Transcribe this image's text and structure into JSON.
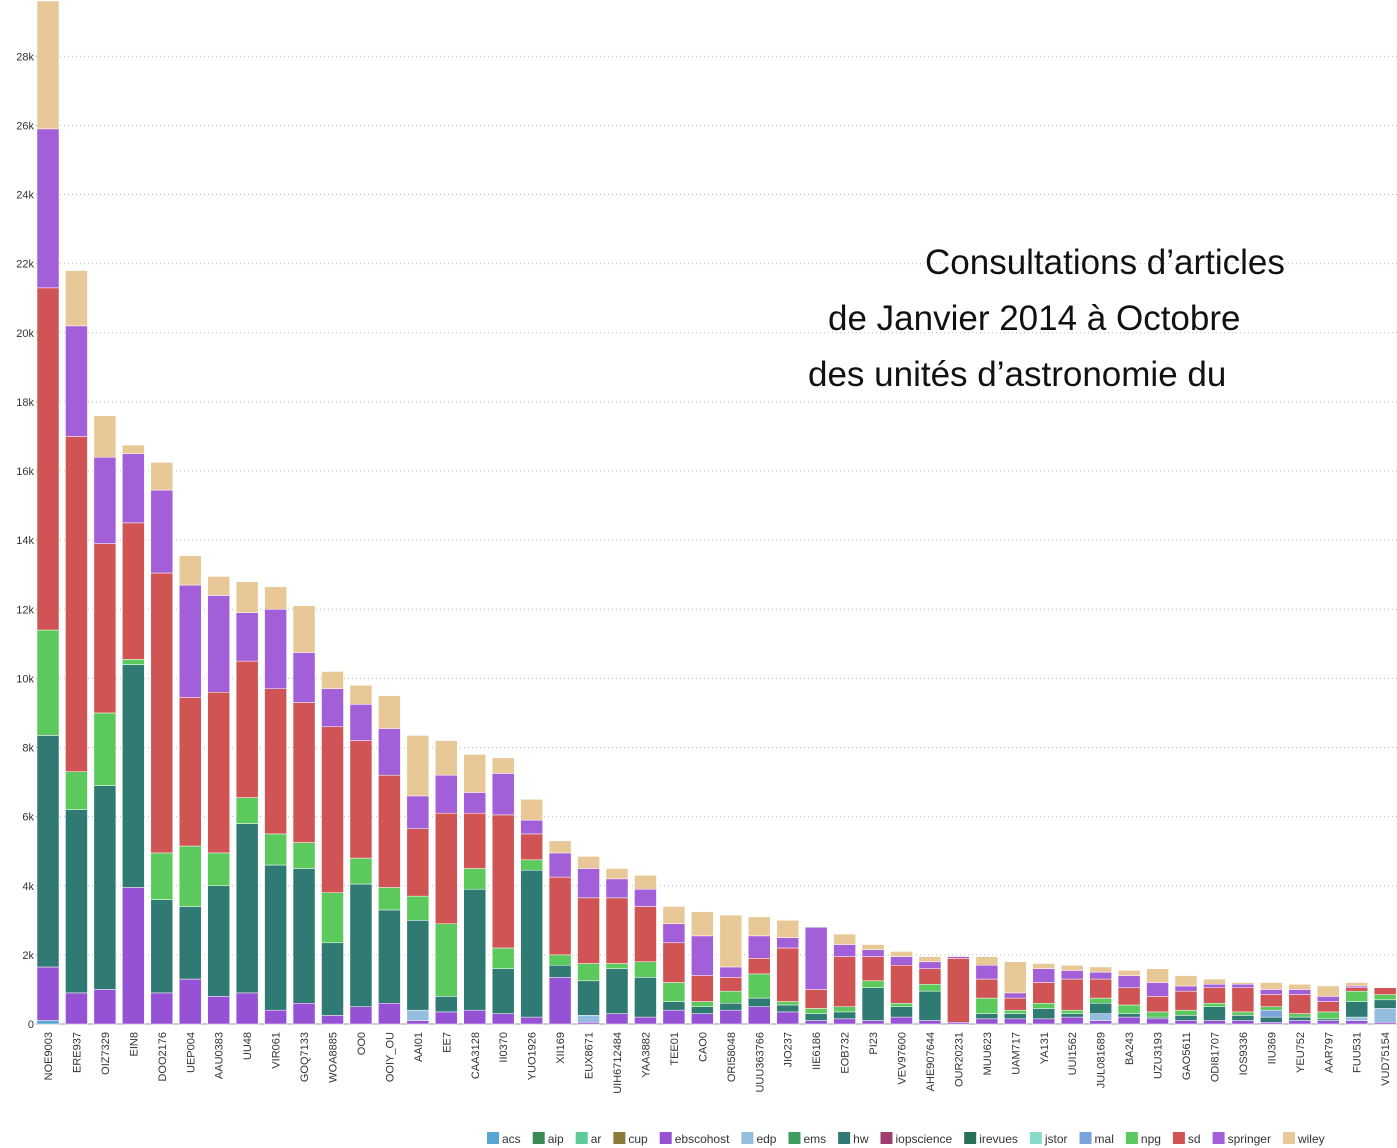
{
  "chart_data": {
    "type": "stacked_bar",
    "title": [
      "Consultations d’articles",
      "de Janvier 2014 à Octobre",
      "des unités d’astronomie du"
    ],
    "categories": [
      "NOE9003",
      "ERE937",
      "OIZ7329",
      "EIN8",
      "DOO2176",
      "UEP004",
      "AAU0383",
      "UU48",
      "VIR061",
      "GOQ7133",
      "WOA8885",
      "OO0",
      "OOIY_OU",
      "AAI01",
      "EE7",
      "CAA3128",
      "II0370",
      "YUO1926",
      "XII169",
      "EUX8671",
      "UIH6712484",
      "YAA3882",
      "TEE01",
      "CAO0",
      "ORI58048",
      "UUU363766",
      "JIO237",
      "IIE6186",
      "EOB732",
      "PI23",
      "VEV97600",
      "AHE907644",
      "OUR20231",
      "MUU623",
      "UAM717",
      "YA131",
      "UUI1562",
      "JUL081689",
      "BA243",
      "UZU3193",
      "GAO5611",
      "ODI81707",
      "IOS9336",
      "IIU369",
      "YEU752",
      "AAR797",
      "FUU531",
      "VUD75154"
    ],
    "series": [
      {
        "name": "acs",
        "color": "#5aa6d2",
        "values": [
          100,
          0,
          0,
          0,
          0,
          0,
          0,
          0,
          0,
          0,
          0,
          0,
          0,
          0,
          0,
          0,
          0,
          0,
          0,
          0,
          0,
          0,
          0,
          0,
          0,
          0,
          0,
          0,
          0,
          0,
          0,
          0,
          0,
          0,
          0,
          0,
          0,
          0,
          0,
          0,
          0,
          0,
          0,
          0,
          0,
          0,
          0,
          0
        ]
      },
      {
        "name": "aip",
        "color": "#3a8a55",
        "values": [
          0,
          0,
          0,
          0,
          0,
          0,
          0,
          0,
          0,
          0,
          0,
          0,
          0,
          0,
          0,
          0,
          0,
          0,
          0,
          0,
          0,
          0,
          0,
          0,
          0,
          0,
          0,
          0,
          0,
          0,
          0,
          0,
          0,
          0,
          0,
          0,
          0,
          0,
          0,
          0,
          0,
          0,
          0,
          0,
          0,
          0,
          0,
          0
        ]
      },
      {
        "name": "ar",
        "color": "#5ec99a",
        "values": [
          0,
          0,
          0,
          0,
          0,
          0,
          0,
          0,
          0,
          0,
          0,
          0,
          0,
          0,
          0,
          0,
          0,
          0,
          0,
          0,
          0,
          0,
          0,
          0,
          0,
          0,
          0,
          0,
          0,
          0,
          0,
          0,
          0,
          0,
          0,
          0,
          0,
          0,
          0,
          0,
          0,
          0,
          0,
          0,
          0,
          0,
          0,
          0
        ]
      },
      {
        "name": "cup",
        "color": "#8b7a3a",
        "values": [
          0,
          0,
          0,
          0,
          0,
          0,
          0,
          0,
          0,
          0,
          0,
          0,
          0,
          0,
          0,
          0,
          0,
          0,
          0,
          0,
          0,
          0,
          0,
          0,
          0,
          0,
          0,
          0,
          0,
          0,
          0,
          0,
          0,
          0,
          0,
          0,
          0,
          0,
          0,
          0,
          0,
          0,
          0,
          0,
          0,
          0,
          0,
          0
        ]
      },
      {
        "name": "ebscohost",
        "color": "#9652d4",
        "values": [
          1550,
          900,
          1000,
          3950,
          900,
          1300,
          800,
          900,
          400,
          600,
          250,
          500,
          600,
          100,
          350,
          400,
          300,
          200,
          1350,
          50,
          300,
          200,
          400,
          300,
          400,
          500,
          350,
          100,
          150,
          100,
          200,
          100,
          50,
          150,
          150,
          150,
          200,
          100,
          200,
          150,
          100,
          100,
          100,
          50,
          100,
          100,
          100,
          50
        ]
      },
      {
        "name": "edp",
        "color": "#94bde0",
        "values": [
          0,
          0,
          0,
          0,
          0,
          0,
          0,
          0,
          0,
          0,
          0,
          0,
          0,
          300,
          0,
          0,
          0,
          0,
          0,
          200,
          0,
          0,
          0,
          0,
          0,
          0,
          0,
          0,
          0,
          0,
          0,
          0,
          0,
          0,
          0,
          0,
          0,
          200,
          0,
          0,
          0,
          0,
          0,
          0,
          0,
          0,
          100,
          400
        ]
      },
      {
        "name": "ems",
        "color": "#3f9e5f",
        "values": [
          0,
          0,
          0,
          0,
          0,
          0,
          0,
          0,
          0,
          0,
          0,
          0,
          0,
          0,
          0,
          0,
          0,
          0,
          0,
          0,
          0,
          0,
          0,
          0,
          0,
          0,
          0,
          0,
          0,
          0,
          0,
          0,
          0,
          0,
          0,
          0,
          0,
          0,
          0,
          0,
          0,
          0,
          0,
          0,
          0,
          0,
          0,
          0
        ]
      },
      {
        "name": "hw",
        "color": "#2f7a72",
        "values": [
          6700,
          5300,
          5900,
          6450,
          2700,
          2100,
          3200,
          4900,
          4200,
          3900,
          2100,
          3550,
          2700,
          2600,
          450,
          3500,
          1300,
          4250,
          350,
          1000,
          1300,
          1150,
          250,
          200,
          200,
          250,
          200,
          200,
          200,
          950,
          300,
          850,
          0,
          150,
          150,
          300,
          100,
          300,
          100,
          50,
          150,
          400,
          150,
          150,
          100,
          50,
          450,
          250
        ]
      },
      {
        "name": "iopscience",
        "color": "#9e3e6e",
        "values": [
          0,
          0,
          0,
          0,
          0,
          0,
          0,
          0,
          0,
          0,
          0,
          0,
          0,
          0,
          0,
          0,
          0,
          0,
          0,
          0,
          0,
          0,
          0,
          0,
          0,
          0,
          0,
          0,
          0,
          0,
          0,
          0,
          0,
          0,
          0,
          0,
          0,
          0,
          0,
          0,
          0,
          0,
          0,
          0,
          0,
          0,
          0,
          0
        ]
      },
      {
        "name": "irevues",
        "color": "#2a6f5a",
        "values": [
          0,
          0,
          0,
          0,
          0,
          0,
          0,
          0,
          0,
          0,
          0,
          0,
          0,
          0,
          0,
          0,
          0,
          0,
          0,
          0,
          0,
          0,
          0,
          0,
          0,
          0,
          0,
          0,
          0,
          0,
          0,
          0,
          0,
          0,
          0,
          0,
          0,
          0,
          0,
          0,
          0,
          0,
          0,
          0,
          0,
          0,
          0,
          0
        ]
      },
      {
        "name": "jstor",
        "color": "#86dcc8",
        "values": [
          0,
          0,
          0,
          0,
          0,
          0,
          0,
          0,
          0,
          0,
          0,
          0,
          0,
          0,
          0,
          0,
          0,
          0,
          0,
          0,
          0,
          0,
          0,
          0,
          0,
          0,
          0,
          0,
          0,
          0,
          0,
          0,
          0,
          0,
          0,
          0,
          0,
          0,
          0,
          0,
          0,
          0,
          0,
          0,
          0,
          0,
          0,
          0
        ]
      },
      {
        "name": "mal",
        "color": "#7ba3dc",
        "values": [
          0,
          0,
          0,
          0,
          0,
          0,
          0,
          0,
          0,
          0,
          0,
          0,
          0,
          0,
          0,
          0,
          0,
          0,
          0,
          0,
          0,
          0,
          0,
          0,
          0,
          0,
          0,
          0,
          0,
          0,
          0,
          0,
          0,
          0,
          0,
          0,
          0,
          0,
          0,
          0,
          0,
          0,
          0,
          200,
          0,
          0,
          0,
          0
        ]
      },
      {
        "name": "npg",
        "color": "#5cc95c",
        "values": [
          3050,
          1100,
          2100,
          150,
          1350,
          1750,
          950,
          750,
          900,
          750,
          1450,
          750,
          650,
          700,
          2100,
          600,
          600,
          300,
          300,
          500,
          150,
          450,
          550,
          150,
          350,
          700,
          100,
          150,
          150,
          200,
          100,
          200,
          0,
          450,
          100,
          150,
          100,
          150,
          250,
          150,
          150,
          100,
          100,
          100,
          100,
          200,
          300,
          150
        ]
      },
      {
        "name": "sd",
        "color": "#d05454",
        "values": [
          9900,
          9700,
          4900,
          3950,
          8100,
          4300,
          4650,
          3950,
          4200,
          4050,
          4800,
          3400,
          3250,
          1950,
          3200,
          1600,
          3850,
          750,
          2250,
          1900,
          1900,
          1600,
          1150,
          750,
          400,
          450,
          1550,
          550,
          1450,
          700,
          1100,
          450,
          1850,
          550,
          350,
          600,
          900,
          550,
          500,
          450,
          550,
          450,
          700,
          350,
          550,
          300,
          100,
          200
        ]
      },
      {
        "name": "springer",
        "color": "#a35fd8",
        "values": [
          4600,
          3200,
          2500,
          2000,
          2400,
          3250,
          2800,
          1400,
          2300,
          1450,
          1100,
          1050,
          1350,
          950,
          1100,
          600,
          1200,
          400,
          700,
          850,
          550,
          500,
          550,
          1150,
          300,
          650,
          300,
          1800,
          350,
          200,
          250,
          200,
          50,
          400,
          150,
          400,
          250,
          200,
          350,
          400,
          150,
          100,
          100,
          150,
          150,
          150,
          50,
          0
        ]
      },
      {
        "name": "wiley",
        "color": "#e8c896",
        "values": [
          3700,
          1600,
          1200,
          250,
          800,
          850,
          550,
          900,
          650,
          1350,
          500,
          550,
          950,
          1750,
          1000,
          1100,
          450,
          600,
          350,
          350,
          300,
          400,
          500,
          700,
          1500,
          550,
          500,
          0,
          300,
          150,
          150,
          150,
          0,
          250,
          900,
          150,
          150,
          150,
          150,
          400,
          300,
          150,
          50,
          200,
          150,
          300,
          100,
          0
        ]
      }
    ],
    "ylim": [
      0,
      29600
    ],
    "yticks": [
      0,
      {
        "value": 2000,
        "label": "2k"
      },
      {
        "value": 4000,
        "label": "4k"
      },
      {
        "value": 6000,
        "label": "6k"
      },
      {
        "value": 8000,
        "label": "8k"
      },
      {
        "value": 10000,
        "label": "10k"
      },
      {
        "value": 12000,
        "label": "12k"
      },
      {
        "value": 14000,
        "label": "14k"
      },
      {
        "value": 16000,
        "label": "16k"
      },
      {
        "value": 18000,
        "label": "18k"
      },
      {
        "value": 20000,
        "label": "20k"
      },
      {
        "value": 22000,
        "label": "22k"
      },
      {
        "value": 24000,
        "label": "24k"
      },
      {
        "value": 26000,
        "label": "26k"
      },
      {
        "value": 28000,
        "label": "28k"
      }
    ],
    "grid": true
  }
}
